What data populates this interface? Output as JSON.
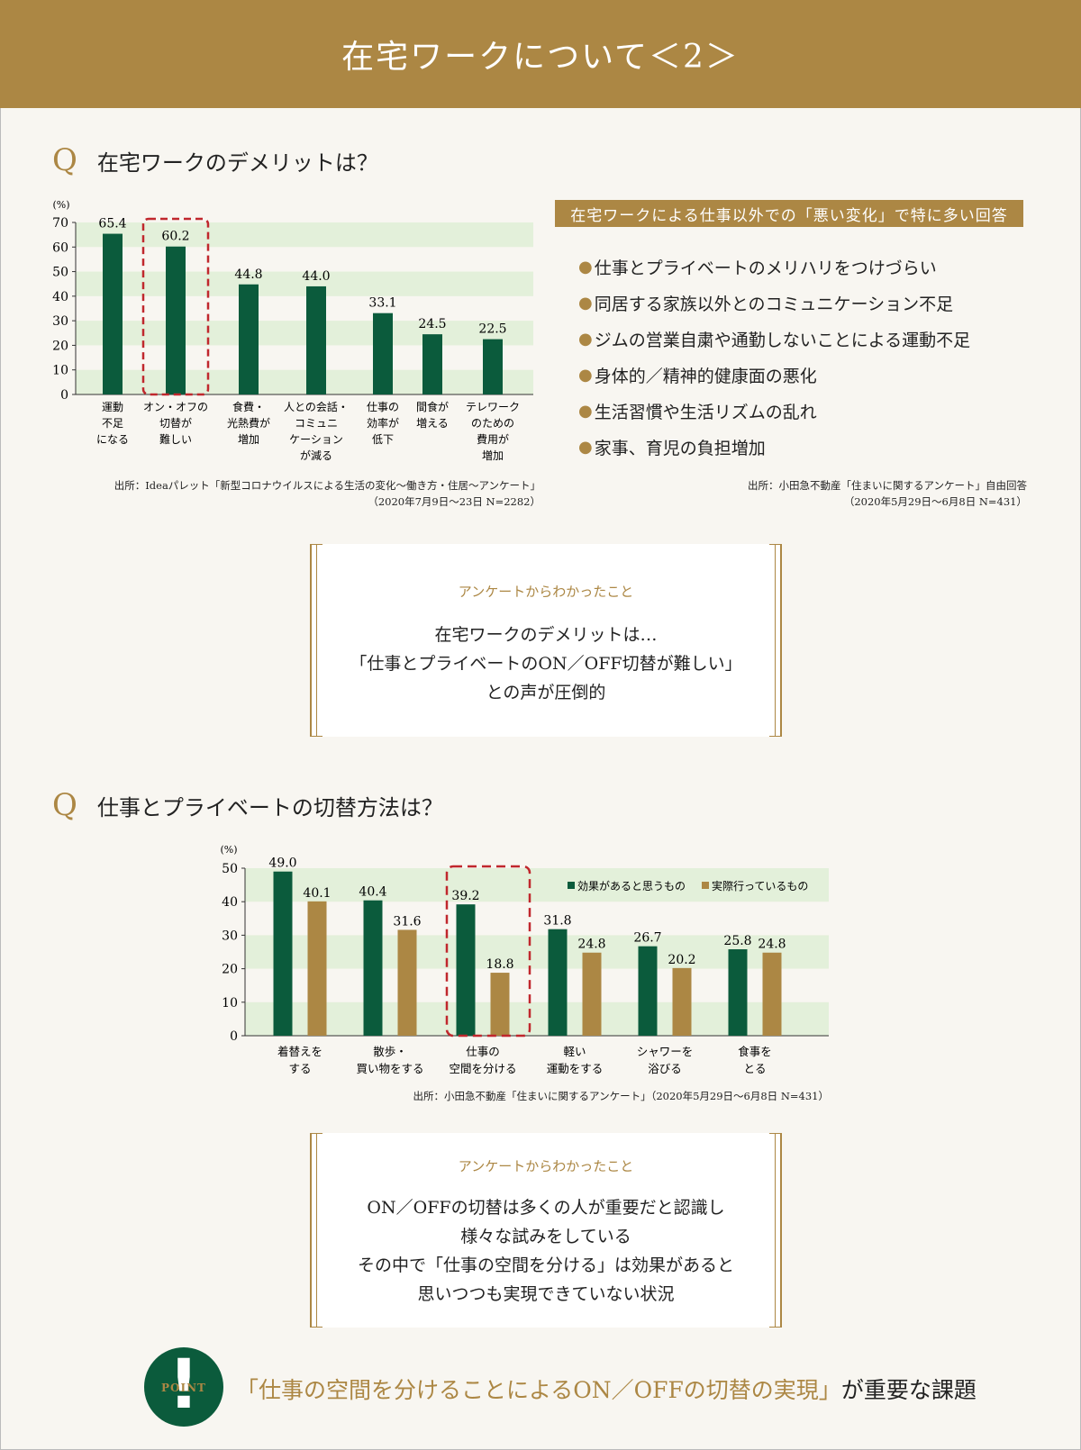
{
  "header": {
    "title": "在宅ワークについて＜2＞"
  },
  "section1": {
    "q_mark": "Q",
    "title": "在宅ワークのデメリットは？",
    "source_line1": "出所：Ideaパレット「新型コロナウイルスによる生活の変化～働き方・住居～アンケート」",
    "source_line2": "（2020年7月9日～23日 N=2282）"
  },
  "side": {
    "tag": "在宅ワークによる仕事以外での「悪い変化」で特に多い回答",
    "bullet": "●",
    "items": [
      "仕事とプライベートのメリハリをつけづらい",
      "同居する家族以外とのコミュニケーション不足",
      "ジムの営業自粛や通勤しないことによる運動不足",
      "身体的／精神的健康面の悪化",
      "生活習慣や生活リズムの乱れ",
      "家事、育児の負担増加"
    ],
    "source_line1": "出所：小田急不動産「住まいに関するアンケート」自由回答",
    "source_line2": "（2020年5月29日～6月8日 N=431）"
  },
  "summary1": {
    "label": "アンケートからわかったこと",
    "lines": [
      "在宅ワークのデメリットは…",
      "「仕事とプライベートのON／OFF切替が難しい」",
      "との声が圧倒的"
    ]
  },
  "section2": {
    "q_mark": "Q",
    "title": "仕事とプライベートの切替方法は？",
    "source": "出所：小田急不動産「住まいに関するアンケート」（2020年5月29日～6月8日 N=431）"
  },
  "summary2": {
    "label": "アンケートからわかったこと",
    "lines": [
      "ON／OFFの切替は多くの人が重要だと認識し",
      "様々な試みをしている",
      "その中で「仕事の空間を分ける」は効果があると",
      "思いつつも実現できていない状況"
    ]
  },
  "point": {
    "mark": "!",
    "word": "POINT",
    "highlight": "「仕事の空間を分けることによるON／OFFの切替の実現」",
    "rest": "が重要な課題"
  },
  "colors": {
    "gold": "#ac8744",
    "green": "#0b5b3c",
    "band": "#e3f0da",
    "dash": "#c0272d"
  },
  "chart_data": [
    {
      "type": "bar",
      "unit": "(%)",
      "categories": [
        [
          "運動",
          "不足",
          "になる"
        ],
        [
          "オン・オフの",
          "切替が",
          "難しい"
        ],
        [
          "食費・",
          "光熱費が",
          "増加"
        ],
        [
          "人との会話・",
          "コミュニ",
          "ケーション",
          "が減る"
        ],
        [
          "仕事の",
          "効率が",
          "低下"
        ],
        [
          "間食が",
          "増える"
        ],
        [
          "テレワーク",
          "のための",
          "費用が",
          "増加"
        ]
      ],
      "values": [
        65.4,
        60.2,
        44.8,
        44.0,
        33.1,
        24.5,
        22.5
      ],
      "ylim": [
        0,
        70
      ],
      "yticks": [
        0,
        10,
        20,
        30,
        40,
        50,
        60,
        70
      ],
      "highlight_index": 1,
      "grid": "alternating bands"
    },
    {
      "type": "bar",
      "unit": "(%)",
      "categories": [
        [
          "着替えを",
          "する"
        ],
        [
          "散歩・",
          "買い物をする"
        ],
        [
          "仕事の",
          "空間を分ける"
        ],
        [
          "軽い",
          "運動をする"
        ],
        [
          "シャワーを",
          "浴びる"
        ],
        [
          "食事を",
          "とる"
        ]
      ],
      "series": [
        {
          "name": "効果があると思うもの",
          "values": [
            49.0,
            40.4,
            39.2,
            31.8,
            26.7,
            25.8
          ]
        },
        {
          "name": "実際行っているもの",
          "values": [
            40.1,
            31.6,
            18.8,
            24.8,
            20.2,
            24.8
          ]
        }
      ],
      "ylim": [
        0,
        50
      ],
      "yticks": [
        0,
        10,
        20,
        30,
        40,
        50
      ],
      "highlight_index": 2,
      "legend": "top-right",
      "grid": "alternating bands"
    }
  ]
}
